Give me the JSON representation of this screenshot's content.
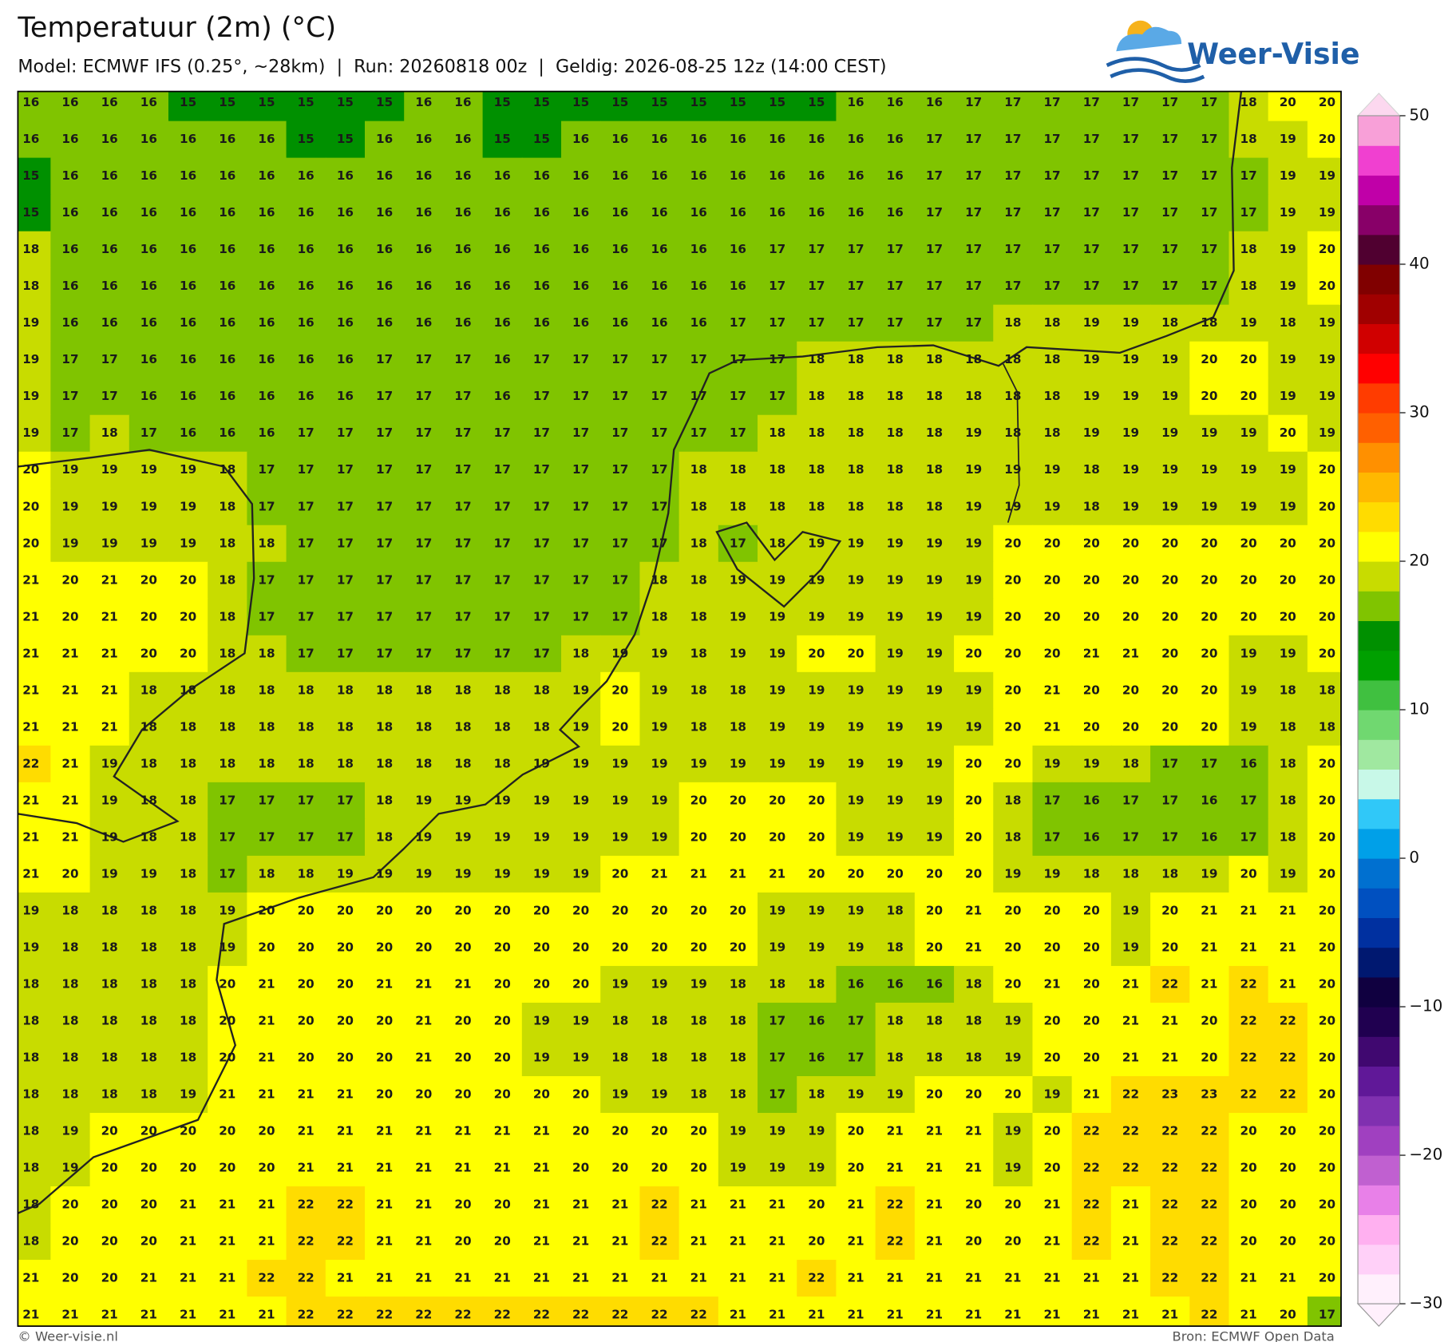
{
  "header": {
    "title": "Temperatuur (2m) (°C)",
    "subtitle": "Model: ECMWF IFS (0.25°, ~28km)  |  Run: 20260818 00z  |  Geldig: 2026-08-25 12z (14:00 CEST)",
    "logo": "Weer-Visie"
  },
  "map": {
    "grid": [
      [
        16,
        16,
        16,
        16,
        15,
        15,
        15,
        15,
        15,
        15,
        16,
        16,
        15,
        15,
        15,
        15,
        15,
        15,
        15,
        15,
        15,
        16,
        16,
        16,
        17,
        17,
        17,
        17,
        17,
        17,
        17,
        18,
        20,
        20
      ],
      [
        16,
        16,
        16,
        16,
        16,
        16,
        16,
        15,
        15,
        16,
        16,
        16,
        15,
        15,
        16,
        16,
        16,
        16,
        16,
        16,
        16,
        16,
        16,
        17,
        17,
        17,
        17,
        17,
        17,
        17,
        17,
        18,
        19,
        20
      ],
      [
        15,
        16,
        16,
        16,
        16,
        16,
        16,
        16,
        16,
        16,
        16,
        16,
        16,
        16,
        16,
        16,
        16,
        16,
        16,
        16,
        16,
        16,
        16,
        17,
        17,
        17,
        17,
        17,
        17,
        17,
        17,
        17,
        19,
        19
      ],
      [
        15,
        16,
        16,
        16,
        16,
        16,
        16,
        16,
        16,
        16,
        16,
        16,
        16,
        16,
        16,
        16,
        16,
        16,
        16,
        16,
        16,
        16,
        16,
        17,
        17,
        17,
        17,
        17,
        17,
        17,
        17,
        17,
        19,
        19
      ],
      [
        18,
        16,
        16,
        16,
        16,
        16,
        16,
        16,
        16,
        16,
        16,
        16,
        16,
        16,
        16,
        16,
        16,
        16,
        16,
        17,
        17,
        17,
        17,
        17,
        17,
        17,
        17,
        17,
        17,
        17,
        17,
        18,
        19,
        20
      ],
      [
        18,
        16,
        16,
        16,
        16,
        16,
        16,
        16,
        16,
        16,
        16,
        16,
        16,
        16,
        16,
        16,
        16,
        16,
        16,
        17,
        17,
        17,
        17,
        17,
        17,
        17,
        17,
        17,
        17,
        17,
        17,
        18,
        19,
        20
      ],
      [
        19,
        16,
        16,
        16,
        16,
        16,
        16,
        16,
        16,
        16,
        16,
        16,
        16,
        16,
        16,
        16,
        16,
        16,
        17,
        17,
        17,
        17,
        17,
        17,
        17,
        18,
        18,
        19,
        19,
        18,
        18,
        19,
        18,
        19
      ],
      [
        19,
        17,
        17,
        16,
        16,
        16,
        16,
        16,
        16,
        17,
        17,
        17,
        16,
        17,
        17,
        17,
        17,
        17,
        17,
        17,
        18,
        18,
        18,
        18,
        18,
        18,
        18,
        19,
        19,
        19,
        20,
        20,
        19,
        19
      ],
      [
        19,
        17,
        17,
        16,
        16,
        16,
        16,
        16,
        16,
        17,
        17,
        17,
        16,
        17,
        17,
        17,
        17,
        17,
        17,
        17,
        18,
        18,
        18,
        18,
        18,
        18,
        18,
        19,
        19,
        19,
        20,
        20,
        19,
        19
      ],
      [
        19,
        17,
        18,
        17,
        16,
        16,
        16,
        17,
        17,
        17,
        17,
        17,
        17,
        17,
        17,
        17,
        17,
        17,
        17,
        18,
        18,
        18,
        18,
        18,
        19,
        18,
        18,
        19,
        19,
        19,
        19,
        19,
        20,
        19
      ],
      [
        20,
        19,
        19,
        19,
        19,
        18,
        17,
        17,
        17,
        17,
        17,
        17,
        17,
        17,
        17,
        17,
        17,
        18,
        18,
        18,
        18,
        18,
        18,
        18,
        19,
        19,
        19,
        18,
        19,
        19,
        19,
        19,
        19,
        20
      ],
      [
        20,
        19,
        19,
        19,
        19,
        18,
        17,
        17,
        17,
        17,
        17,
        17,
        17,
        17,
        17,
        17,
        17,
        18,
        18,
        18,
        18,
        18,
        18,
        18,
        19,
        19,
        19,
        18,
        19,
        19,
        19,
        19,
        19,
        20
      ],
      [
        20,
        19,
        19,
        19,
        19,
        18,
        18,
        17,
        17,
        17,
        17,
        17,
        17,
        17,
        17,
        17,
        17,
        18,
        17,
        18,
        19,
        19,
        19,
        19,
        19,
        20,
        20,
        20,
        20,
        20,
        20,
        20,
        20,
        20
      ],
      [
        21,
        20,
        21,
        20,
        20,
        18,
        17,
        17,
        17,
        17,
        17,
        17,
        17,
        17,
        17,
        17,
        18,
        18,
        19,
        19,
        19,
        19,
        19,
        19,
        19,
        20,
        20,
        20,
        20,
        20,
        20,
        20,
        20,
        20
      ],
      [
        21,
        20,
        21,
        20,
        20,
        18,
        17,
        17,
        17,
        17,
        17,
        17,
        17,
        17,
        17,
        17,
        18,
        18,
        19,
        19,
        19,
        19,
        19,
        19,
        19,
        20,
        20,
        20,
        20,
        20,
        20,
        20,
        20,
        20
      ],
      [
        21,
        21,
        21,
        20,
        20,
        18,
        18,
        17,
        17,
        17,
        17,
        17,
        17,
        17,
        18,
        19,
        19,
        18,
        19,
        19,
        20,
        20,
        19,
        19,
        20,
        20,
        20,
        21,
        21,
        20,
        20,
        19,
        19,
        20
      ],
      [
        21,
        21,
        21,
        18,
        18,
        18,
        18,
        18,
        18,
        18,
        18,
        18,
        18,
        18,
        19,
        20,
        19,
        18,
        18,
        19,
        19,
        19,
        19,
        19,
        19,
        20,
        21,
        20,
        20,
        20,
        20,
        19,
        18,
        18
      ],
      [
        21,
        21,
        21,
        18,
        18,
        18,
        18,
        18,
        18,
        18,
        18,
        18,
        18,
        18,
        19,
        20,
        19,
        18,
        18,
        19,
        19,
        19,
        19,
        19,
        19,
        20,
        21,
        20,
        20,
        20,
        20,
        19,
        18,
        18
      ],
      [
        22,
        21,
        19,
        18,
        18,
        18,
        18,
        18,
        18,
        18,
        18,
        18,
        18,
        19,
        19,
        19,
        19,
        19,
        19,
        19,
        19,
        19,
        19,
        19,
        20,
        20,
        19,
        19,
        18,
        17,
        17,
        16,
        18,
        20
      ],
      [
        21,
        21,
        19,
        18,
        18,
        17,
        17,
        17,
        17,
        18,
        19,
        19,
        19,
        19,
        19,
        19,
        19,
        20,
        20,
        20,
        20,
        19,
        19,
        19,
        20,
        18,
        17,
        16,
        17,
        17,
        16,
        17,
        18,
        20
      ],
      [
        21,
        21,
        19,
        18,
        18,
        17,
        17,
        17,
        17,
        18,
        19,
        19,
        19,
        19,
        19,
        19,
        19,
        20,
        20,
        20,
        20,
        19,
        19,
        19,
        20,
        18,
        17,
        16,
        17,
        17,
        16,
        17,
        18,
        20
      ],
      [
        21,
        20,
        19,
        19,
        18,
        17,
        18,
        18,
        19,
        19,
        19,
        19,
        19,
        19,
        19,
        20,
        21,
        21,
        21,
        21,
        20,
        20,
        20,
        20,
        20,
        19,
        19,
        18,
        18,
        18,
        19,
        20,
        19,
        20
      ],
      [
        19,
        18,
        18,
        18,
        18,
        19,
        20,
        20,
        20,
        20,
        20,
        20,
        20,
        20,
        20,
        20,
        20,
        20,
        20,
        19,
        19,
        19,
        18,
        20,
        21,
        20,
        20,
        20,
        19,
        20,
        21,
        21,
        21,
        20
      ],
      [
        19,
        18,
        18,
        18,
        18,
        19,
        20,
        20,
        20,
        20,
        20,
        20,
        20,
        20,
        20,
        20,
        20,
        20,
        20,
        19,
        19,
        19,
        18,
        20,
        21,
        20,
        20,
        20,
        19,
        20,
        21,
        21,
        21,
        20
      ],
      [
        18,
        18,
        18,
        18,
        18,
        20,
        21,
        20,
        20,
        21,
        21,
        21,
        20,
        20,
        20,
        19,
        19,
        19,
        18,
        18,
        18,
        16,
        16,
        16,
        18,
        20,
        21,
        20,
        21,
        22,
        21,
        22,
        21,
        20
      ],
      [
        18,
        18,
        18,
        18,
        18,
        20,
        21,
        20,
        20,
        20,
        21,
        20,
        20,
        19,
        19,
        18,
        18,
        18,
        18,
        17,
        16,
        17,
        18,
        18,
        18,
        19,
        20,
        20,
        21,
        21,
        20,
        22,
        22,
        20
      ],
      [
        18,
        18,
        18,
        18,
        18,
        20,
        21,
        20,
        20,
        20,
        21,
        20,
        20,
        19,
        19,
        18,
        18,
        18,
        18,
        17,
        16,
        17,
        18,
        18,
        18,
        19,
        20,
        20,
        21,
        21,
        20,
        22,
        22,
        20
      ],
      [
        18,
        18,
        18,
        18,
        19,
        21,
        21,
        21,
        21,
        20,
        20,
        20,
        20,
        20,
        20,
        19,
        19,
        18,
        18,
        17,
        18,
        19,
        19,
        20,
        20,
        20,
        19,
        21,
        22,
        23,
        23,
        22,
        22,
        20
      ],
      [
        18,
        19,
        20,
        20,
        20,
        20,
        20,
        21,
        21,
        21,
        21,
        21,
        21,
        21,
        20,
        20,
        20,
        20,
        19,
        19,
        19,
        20,
        21,
        21,
        21,
        19,
        20,
        22,
        22,
        22,
        22,
        20,
        20,
        20
      ],
      [
        18,
        19,
        20,
        20,
        20,
        20,
        20,
        21,
        21,
        21,
        21,
        21,
        21,
        21,
        20,
        20,
        20,
        20,
        19,
        19,
        19,
        20,
        21,
        21,
        21,
        19,
        20,
        22,
        22,
        22,
        22,
        20,
        20,
        20
      ],
      [
        18,
        20,
        20,
        20,
        21,
        21,
        21,
        22,
        22,
        21,
        21,
        20,
        20,
        21,
        21,
        21,
        22,
        21,
        21,
        21,
        20,
        21,
        22,
        21,
        20,
        20,
        21,
        22,
        21,
        22,
        22,
        20,
        20,
        20
      ],
      [
        18,
        20,
        20,
        20,
        21,
        21,
        21,
        22,
        22,
        21,
        21,
        20,
        20,
        21,
        21,
        21,
        22,
        21,
        21,
        21,
        20,
        21,
        22,
        21,
        20,
        20,
        21,
        22,
        21,
        22,
        22,
        20,
        20,
        20
      ],
      [
        21,
        20,
        20,
        21,
        21,
        21,
        22,
        22,
        21,
        21,
        21,
        21,
        21,
        21,
        21,
        21,
        21,
        21,
        21,
        21,
        22,
        21,
        21,
        21,
        21,
        21,
        21,
        21,
        21,
        22,
        22,
        21,
        21,
        20
      ],
      [
        21,
        21,
        21,
        21,
        21,
        21,
        21,
        22,
        22,
        22,
        22,
        22,
        22,
        22,
        22,
        22,
        22,
        22,
        21,
        21,
        21,
        21,
        21,
        21,
        21,
        21,
        21,
        21,
        21,
        21,
        22,
        21,
        20,
        17
      ]
    ],
    "colorbar": {
      "lim": [
        -30,
        50
      ],
      "ticks": [
        50,
        40,
        30,
        20,
        10,
        0,
        {
          "value": -10,
          "label": "−10"
        },
        {
          "value": -20,
          "label": "−20"
        },
        {
          "value": -30,
          "label": "−30"
        }
      ],
      "colors": [
        "#fff0fc",
        "#ffd0f8",
        "#ffb0f0",
        "#e880e8",
        "#c060d0",
        "#a040c0",
        "#8030b0",
        "#601898",
        "#400870",
        "#200050",
        "#100040",
        "#001870",
        "#0030a0",
        "#0050c0",
        "#0070d0",
        "#00a0e8",
        "#30c8f8",
        "#c8f8e8",
        "#a0e8a0",
        "#70d870",
        "#40c040",
        "#00a000",
        "#009000",
        "#80c400",
        "#c8dc00",
        "#ffff00",
        "#ffdc00",
        "#ffb800",
        "#ff9000",
        "#ff6000",
        "#ff3c00",
        "#ff0000",
        "#d00000",
        "#a00000",
        "#800000",
        "#500030",
        "#880068",
        "#c000a8",
        "#f040d0",
        "#f8a0d8"
      ]
    }
  },
  "footer": {
    "left": "© Weer-visie.nl",
    "right": "Bron: ECMWF Open Data"
  }
}
